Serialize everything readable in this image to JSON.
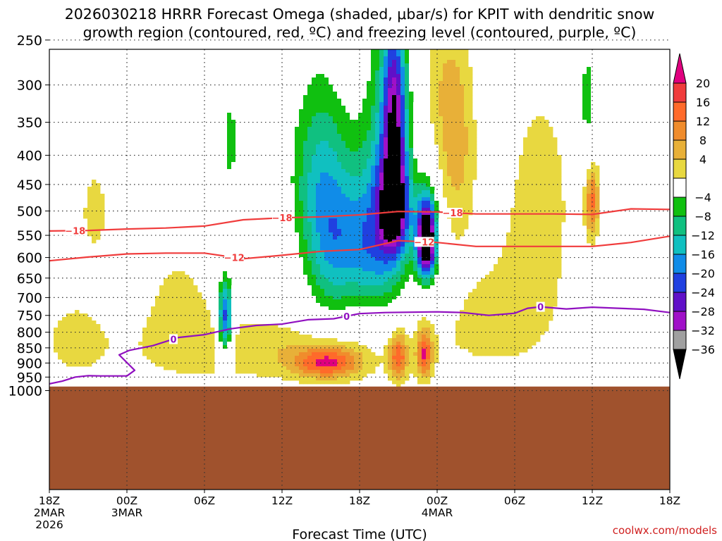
{
  "chart_data": {
    "type": "time-height",
    "title_line1": "2026030218 HRRR Forecast Omega (shaded, μbar/s) for KPIT with dendritic snow",
    "title_line2": "growth region (contoured, red, ºC) and freezing level (contoured, purple, ºC)",
    "xlabel": "Forecast Time (UTC)",
    "credit": "coolwx.com/models",
    "x_range_hours": [
      0,
      48
    ],
    "x_ticks": [
      {
        "hour": 0,
        "lines": [
          "18Z",
          "2MAR",
          "2026"
        ]
      },
      {
        "hour": 6,
        "lines": [
          "00Z",
          "3MAR"
        ]
      },
      {
        "hour": 12,
        "lines": [
          "06Z"
        ]
      },
      {
        "hour": 18,
        "lines": [
          "12Z"
        ]
      },
      {
        "hour": 24,
        "lines": [
          "18Z"
        ]
      },
      {
        "hour": 30,
        "lines": [
          "00Z",
          "4MAR"
        ]
      },
      {
        "hour": 36,
        "lines": [
          "06Z"
        ]
      },
      {
        "hour": 42,
        "lines": [
          "12Z"
        ]
      },
      {
        "hour": 48,
        "lines": [
          "18Z"
        ]
      }
    ],
    "y_label_ticks": [
      "250",
      "300",
      "350",
      "400",
      "450",
      "500",
      "550",
      "600",
      "650",
      "700",
      "750",
      "800",
      "850",
      "900",
      "950",
      "1000"
    ],
    "y_levels": [
      {
        "p": 250,
        "v": 0.074
      },
      {
        "p": 300,
        "v": 0.157
      },
      {
        "p": 350,
        "v": 0.226
      },
      {
        "p": 400,
        "v": 0.287
      },
      {
        "p": 450,
        "v": 0.341
      },
      {
        "p": 500,
        "v": 0.39
      },
      {
        "p": 550,
        "v": 0.435
      },
      {
        "p": 600,
        "v": 0.476
      },
      {
        "p": 650,
        "v": 0.514
      },
      {
        "p": 700,
        "v": 0.55
      },
      {
        "p": 750,
        "v": 0.583
      },
      {
        "p": 800,
        "v": 0.614
      },
      {
        "p": 850,
        "v": 0.643
      },
      {
        "p": 900,
        "v": 0.671
      },
      {
        "p": 950,
        "v": 0.697
      },
      {
        "p": 1000,
        "v": 0.722
      },
      {
        "p": 1025,
        "v": 0.734
      }
    ],
    "surface_pressure": 985,
    "colorbar": {
      "labels": [
        "20",
        "16",
        "12",
        "8",
        "4",
        "−4",
        "−8",
        "−12",
        "−16",
        "−20",
        "−24",
        "−28",
        "−32",
        "−36"
      ],
      "colors_top_to_bottom": [
        "#e0007f",
        "#f03c3c",
        "#ff6a2a",
        "#f08c2c",
        "#e8b038",
        "#e8d840",
        "#ffffff",
        "#10c010",
        "#10c080",
        "#10c0c0",
        "#108ce8",
        "#2040e0",
        "#6010c8",
        "#a010c8",
        "#a0a0a0",
        "#000000"
      ],
      "levels": [
        {
          "bound": 20,
          "color": "#f03c3c"
        },
        {
          "bound": 16,
          "color": "#ff6a2a"
        },
        {
          "bound": 12,
          "color": "#f08c2c"
        },
        {
          "bound": 8,
          "color": "#e8b038"
        },
        {
          "bound": 4,
          "color": "#e8d840"
        },
        {
          "bound": -4,
          "color": "#ffffff"
        },
        {
          "bound": -8,
          "color": "#10c010"
        },
        {
          "bound": -12,
          "color": "#10c080"
        },
        {
          "bound": -16,
          "color": "#10c0c0"
        },
        {
          "bound": -20,
          "color": "#108ce8"
        },
        {
          "bound": -24,
          "color": "#2040e0"
        },
        {
          "bound": -28,
          "color": "#6010c8"
        },
        {
          "bound": -32,
          "color": "#a010c8"
        },
        {
          "bound": -36,
          "color": "#a0a0a0"
        }
      ],
      "below_min_color": "#000000",
      "above_max_color": "#e0007f"
    },
    "omega_features": [
      {
        "name": "upward-motion-core-4mar",
        "hour": 29.2,
        "p": 560,
        "dh": 0.8,
        "dp": 90,
        "val": -48
      },
      {
        "name": "upward-motion-upper-center",
        "hour": 26.7,
        "p": 330,
        "dh": 0.9,
        "dp": 110,
        "val": -24
      },
      {
        "name": "upward-motion-mid-center",
        "hour": 26.7,
        "p": 490,
        "dh": 1.1,
        "dp": 90,
        "val": -30
      },
      {
        "name": "upward-motion-broad-center",
        "hour": 24.5,
        "p": 570,
        "dh": 3.0,
        "dp": 160,
        "val": -18
      },
      {
        "name": "upward-motion-tall-plume",
        "hour": 26.2,
        "p": 420,
        "dh": 2.0,
        "dp": 260,
        "val": -14
      },
      {
        "name": "upward-motion-upper-left",
        "hour": 20.5,
        "p": 420,
        "dh": 2.5,
        "dp": 170,
        "val": -10
      },
      {
        "name": "upward-motion-left-plume",
        "hour": 21.5,
        "p": 560,
        "dh": 2.0,
        "dp": 220,
        "val": -12
      },
      {
        "name": "upward-motion-low-06z",
        "hour": 13.6,
        "p": 760,
        "dh": 0.6,
        "dp": 120,
        "val": -28
      },
      {
        "name": "upward-motion-aloft-06z",
        "hour": 14.0,
        "p": 380,
        "dh": 1.0,
        "dp": 130,
        "val": -9
      },
      {
        "name": "upward-motion-aloft-00z",
        "hour": 7.0,
        "p": 400,
        "dh": 0.3,
        "dp": 70,
        "val": -8
      },
      {
        "name": "upward-motion-rear-12z",
        "hour": 41.6,
        "p": 320,
        "dh": 0.7,
        "dp": 90,
        "val": -11
      },
      {
        "name": "upward-motion-rear-18z",
        "hour": 47.6,
        "p": 350,
        "dh": 0.5,
        "dp": 80,
        "val": -8
      },
      {
        "name": "upward-motion-06z-aloft",
        "hour": 35.5,
        "p": 300,
        "dh": 0.3,
        "dp": 60,
        "val": -7
      },
      {
        "name": "subsidence-low-center",
        "hour": 21.5,
        "p": 900,
        "dh": 2.5,
        "dp": 55,
        "val": 18
      },
      {
        "name": "subsidence-low-3mar",
        "hour": 27.0,
        "p": 880,
        "dh": 0.7,
        "dp": 80,
        "val": 17
      },
      {
        "name": "subsidence-low-4mar",
        "hour": 29.0,
        "p": 870,
        "dh": 0.6,
        "dp": 80,
        "val": 18
      },
      {
        "name": "subsidence-mid-12z",
        "hour": 42.0,
        "p": 480,
        "dh": 0.5,
        "dp": 70,
        "val": 16
      },
      {
        "name": "subsidence-upper-00z",
        "hour": 31.5,
        "p": 380,
        "dh": 1.4,
        "dp": 150,
        "val": 10
      },
      {
        "name": "subsidence-broad-low",
        "hour": 17.0,
        "p": 860,
        "dh": 10.0,
        "dp": 110,
        "val": 7
      },
      {
        "name": "subsidence-left-upper",
        "hour": 3.5,
        "p": 500,
        "dh": 1.5,
        "dp": 120,
        "val": 5
      },
      {
        "name": "subsidence-left-low",
        "hour": 2.0,
        "p": 820,
        "dh": 3.0,
        "dp": 150,
        "val": 5
      },
      {
        "name": "subsidence-right-low",
        "hour": 35.0,
        "p": 760,
        "dh": 6.0,
        "dp": 220,
        "val": 5
      },
      {
        "name": "subsidence-right-upper",
        "hour": 38.0,
        "p": 450,
        "dh": 3.0,
        "dp": 220,
        "val": 5
      },
      {
        "name": "subsidence-mid-left",
        "hour": 10.0,
        "p": 720,
        "dh": 3.0,
        "dp": 180,
        "val": 5
      },
      {
        "name": "subsidence-upper-center",
        "hour": 30.0,
        "p": 300,
        "dh": 1.5,
        "dp": 90,
        "val": 5
      }
    ],
    "contours": [
      {
        "name": "dgz-upper-minus18",
        "color": "#f03c3c",
        "label": "−18",
        "label_hours": [
          2.0,
          18.0,
          31.2
        ],
        "points": [
          [
            0,
            541
          ],
          [
            3,
            540
          ],
          [
            6,
            537
          ],
          [
            9,
            535
          ],
          [
            12,
            531
          ],
          [
            15,
            518
          ],
          [
            18,
            514
          ],
          [
            21,
            512
          ],
          [
            24,
            508
          ],
          [
            27,
            501
          ],
          [
            30,
            502
          ],
          [
            33,
            506
          ],
          [
            36,
            506
          ],
          [
            39,
            506
          ],
          [
            42,
            507
          ],
          [
            45,
            496
          ],
          [
            48,
            497
          ]
        ]
      },
      {
        "name": "dgz-lower-minus12",
        "color": "#f03c3c",
        "label": "−12",
        "label_hours": [
          14.3,
          29.0
        ],
        "points": [
          [
            0,
            608
          ],
          [
            3,
            599
          ],
          [
            6,
            592
          ],
          [
            9,
            590
          ],
          [
            12,
            590
          ],
          [
            15,
            603
          ],
          [
            18,
            595
          ],
          [
            21,
            586
          ],
          [
            24,
            582
          ],
          [
            27,
            562
          ],
          [
            30,
            566
          ],
          [
            33,
            575
          ],
          [
            36,
            575
          ],
          [
            39,
            575
          ],
          [
            42,
            575
          ],
          [
            45,
            566
          ],
          [
            48,
            552
          ]
        ]
      },
      {
        "name": "freezing-level-zero",
        "color": "#9010c0",
        "label": "0",
        "label_hours": [
          9.6,
          23.0,
          38.0
        ],
        "points": [
          [
            0,
            975
          ],
          [
            1,
            965
          ],
          [
            2,
            950
          ],
          [
            3,
            945
          ],
          [
            4,
            946
          ],
          [
            5,
            946
          ],
          [
            6,
            946
          ],
          [
            6.6,
            926
          ],
          [
            5.4,
            873
          ],
          [
            6.2,
            858
          ],
          [
            8,
            843
          ],
          [
            10,
            817
          ],
          [
            12,
            808
          ],
          [
            14,
            790
          ],
          [
            16,
            780
          ],
          [
            18,
            776
          ],
          [
            20,
            763
          ],
          [
            22,
            760
          ],
          [
            24,
            745
          ],
          [
            26,
            742
          ],
          [
            28,
            741
          ],
          [
            30,
            740
          ],
          [
            32,
            742
          ],
          [
            34,
            750
          ],
          [
            36,
            744
          ],
          [
            37,
            730
          ],
          [
            38,
            726
          ],
          [
            40,
            732
          ],
          [
            42,
            727
          ],
          [
            44,
            730
          ],
          [
            46,
            733
          ],
          [
            48,
            742
          ]
        ]
      }
    ]
  }
}
